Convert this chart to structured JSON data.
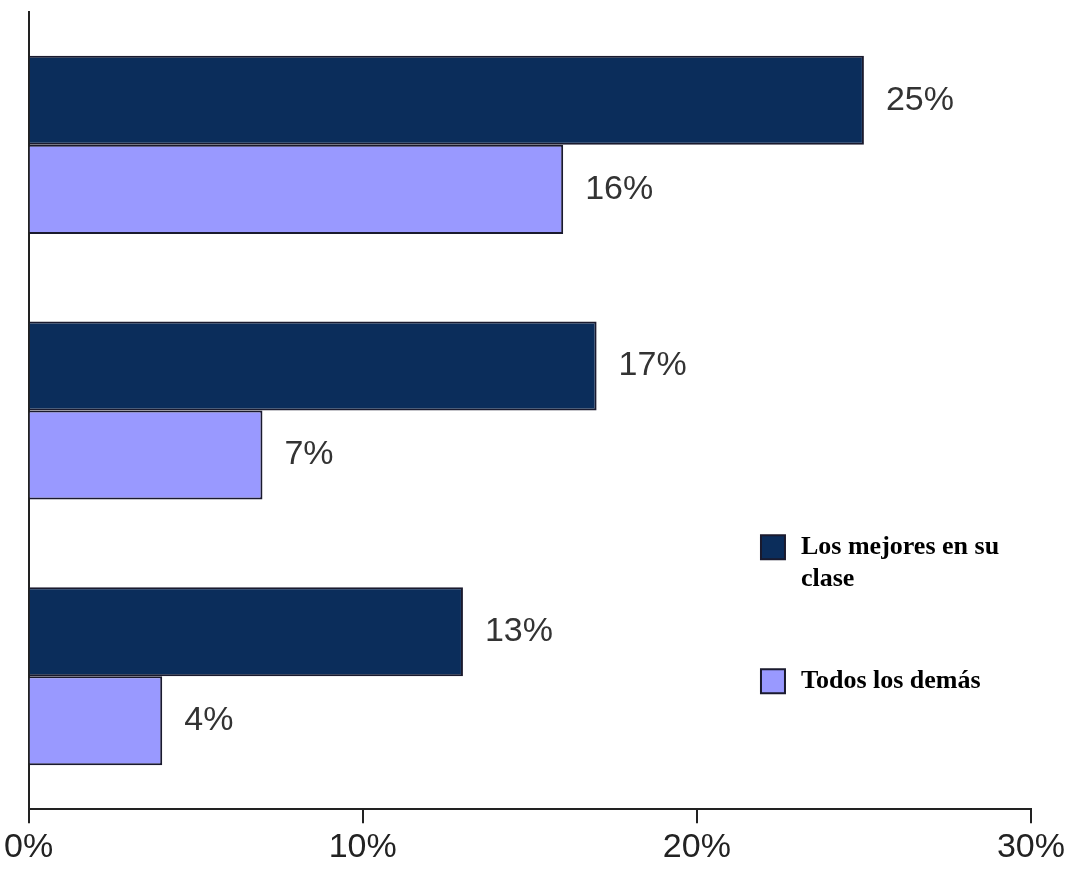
{
  "chart_data": {
    "type": "bar",
    "orientation": "horizontal",
    "categories": [
      null,
      null,
      null
    ],
    "series": [
      {
        "name": "Los mejores en su clase",
        "color": "#0b2d5b",
        "values": [
          25,
          17,
          13
        ],
        "value_labels": [
          "25%",
          "17%",
          "13%"
        ]
      },
      {
        "name": "Todos los demás",
        "color": "#9999ff",
        "values": [
          16,
          7,
          4
        ],
        "value_labels": [
          "16%",
          "7%",
          "4%"
        ]
      }
    ],
    "xlim": [
      0,
      30
    ],
    "xticks": [
      {
        "value": 0,
        "label": "0%"
      },
      {
        "value": 10,
        "label": "10%"
      },
      {
        "value": 20,
        "label": "20%"
      },
      {
        "value": 30,
        "label": "30%"
      }
    ],
    "grid": false,
    "legend": "bottom right"
  }
}
